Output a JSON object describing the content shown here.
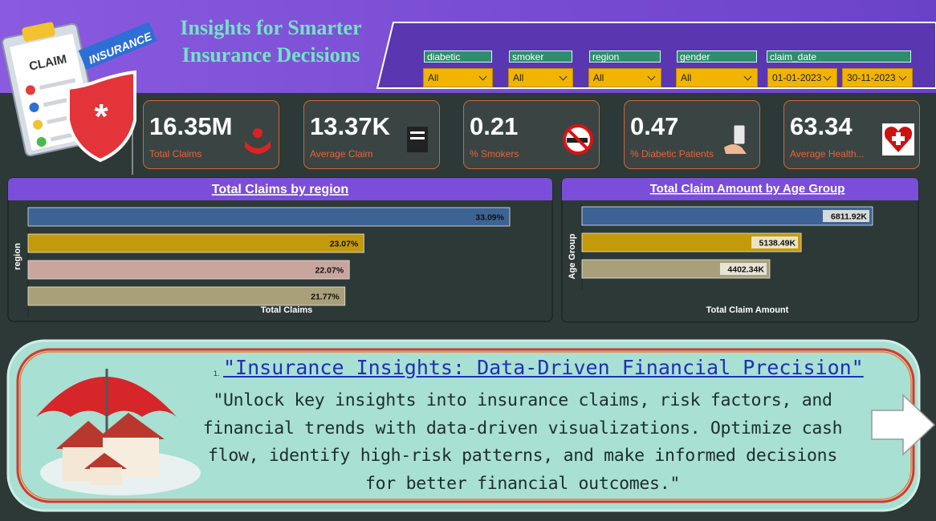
{
  "header": {
    "title_line1": "Insights for Smarter",
    "title_line2": "Insurance Decisions"
  },
  "illustration": {
    "clipboard_label": "CLAIM",
    "banner_label": "INSURANCE"
  },
  "filters": [
    {
      "label": "diabetic",
      "value": "All"
    },
    {
      "label": "smoker",
      "value": "All"
    },
    {
      "label": "region",
      "value": "All"
    },
    {
      "label": "gender",
      "value": "All"
    }
  ],
  "date_filter": {
    "label": "claim_date",
    "start": "01-01-2023",
    "end": "30-11-2023"
  },
  "kpis": [
    {
      "value": "16.35M",
      "label": "Total Claims"
    },
    {
      "value": "13.37K",
      "label": "Average Claim"
    },
    {
      "value": "0.21",
      "label": "% Smokers"
    },
    {
      "value": "0.47",
      "label": "% Diabetic Patients"
    },
    {
      "value": "63.34",
      "label": "Average Health..."
    }
  ],
  "chart_data": [
    {
      "type": "bar",
      "orientation": "horizontal",
      "title": "Total Claims by region",
      "y_label": "region",
      "x_label": "Total Claims",
      "categories": [
        null,
        null,
        null,
        null
      ],
      "values": [
        33.09,
        23.07,
        22.07,
        21.77
      ],
      "value_labels": [
        "33.09%",
        "23.07%",
        "22.07%",
        "21.77%"
      ],
      "colors": [
        "#3d6394",
        "#c39a0c",
        "#c8a69d",
        "#a99f79"
      ]
    },
    {
      "type": "bar",
      "orientation": "horizontal",
      "title": "Total Claim Amount by Age Group",
      "y_label": "Age Group",
      "x_label": "Total Claim Amount",
      "categories": [
        null,
        null,
        null
      ],
      "values": [
        6811.92,
        5138.49,
        4402.34
      ],
      "value_labels": [
        "6811.92K",
        "5138.49K",
        "4402.34K"
      ],
      "colors": [
        "#3d6394",
        "#c39a0c",
        "#a99f79"
      ]
    }
  ],
  "banner": {
    "number": "1.",
    "title": "\"Insurance Insights: Data-Driven Financial Precision\"",
    "body": "\"Unlock key insights into insurance claims, risk factors, and financial trends with data-driven visualizations. Optimize cash flow, identify high-risk patterns, and make informed decisions for better financial outcomes.\""
  }
}
